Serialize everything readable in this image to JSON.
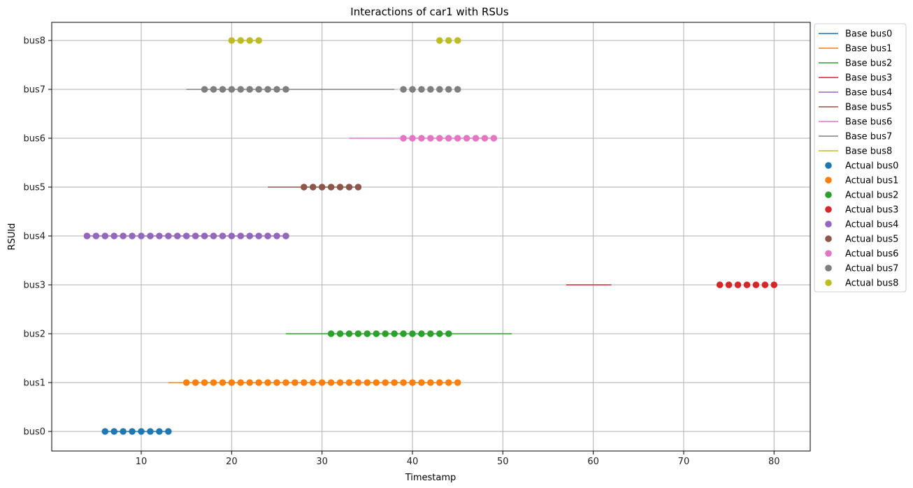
{
  "chart_data": {
    "type": "line+scatter",
    "title": "Interactions of car1 with RSUs",
    "xlabel": "Timestamp",
    "ylabel": "RSUId",
    "xlim": [
      0.1,
      84.0
    ],
    "x_ticks": [
      10,
      20,
      30,
      40,
      50,
      60,
      70,
      80
    ],
    "y_categories": [
      "bus0",
      "bus1",
      "bus2",
      "bus3",
      "bus4",
      "bus5",
      "bus6",
      "bus7",
      "bus8"
    ],
    "grid": true,
    "legend_position": "outside-right",
    "base_series": [
      {
        "name": "Base bus0",
        "rsu": "bus0",
        "color": "#1f77b4",
        "x": [
          6,
          13
        ]
      },
      {
        "name": "Base bus1",
        "rsu": "bus1",
        "color": "#ff7f0e",
        "x": [
          13,
          45
        ]
      },
      {
        "name": "Base bus2",
        "rsu": "bus2",
        "color": "#2ca02c",
        "x": [
          26,
          51
        ]
      },
      {
        "name": "Base bus3",
        "rsu": "bus3",
        "color": "#d62728",
        "x": [
          57,
          62
        ]
      },
      {
        "name": "Base bus4",
        "rsu": "bus4",
        "color": "#9467bd",
        "x": [
          4,
          26
        ]
      },
      {
        "name": "Base bus5",
        "rsu": "bus5",
        "color": "#8c564b",
        "x": [
          24,
          34
        ]
      },
      {
        "name": "Base bus6",
        "rsu": "bus6",
        "color": "#e377c2",
        "x": [
          33,
          49
        ]
      },
      {
        "name": "Base bus7",
        "rsu": "bus7",
        "color": "#7f7f7f",
        "x": [
          15,
          38
        ]
      },
      {
        "name": "Base bus8",
        "rsu": "bus8",
        "color": "#bcbd22",
        "x": [
          20,
          23
        ]
      }
    ],
    "actual_series": [
      {
        "name": "Actual bus0",
        "rsu": "bus0",
        "color": "#1f77b4",
        "x": [
          6,
          7,
          8,
          9,
          10,
          11,
          12,
          13
        ]
      },
      {
        "name": "Actual bus1",
        "rsu": "bus1",
        "color": "#ff7f0e",
        "x": [
          15,
          16,
          17,
          18,
          19,
          20,
          21,
          22,
          23,
          24,
          25,
          26,
          27,
          28,
          29,
          30,
          31,
          32,
          33,
          34,
          35,
          36,
          37,
          38,
          39,
          40,
          41,
          42,
          43,
          44,
          45
        ]
      },
      {
        "name": "Actual bus2",
        "rsu": "bus2",
        "color": "#2ca02c",
        "x": [
          31,
          32,
          33,
          34,
          35,
          36,
          37,
          38,
          39,
          40,
          41,
          42,
          43,
          44
        ]
      },
      {
        "name": "Actual bus3",
        "rsu": "bus3",
        "color": "#d62728",
        "x": [
          74,
          75,
          76,
          77,
          78,
          79,
          80
        ]
      },
      {
        "name": "Actual bus4",
        "rsu": "bus4",
        "color": "#9467bd",
        "x": [
          4,
          5,
          6,
          7,
          8,
          9,
          10,
          11,
          12,
          13,
          14,
          15,
          16,
          17,
          18,
          19,
          20,
          21,
          22,
          23,
          24,
          25,
          26
        ]
      },
      {
        "name": "Actual bus5",
        "rsu": "bus5",
        "color": "#8c564b",
        "x": [
          28,
          29,
          30,
          31,
          32,
          33,
          34
        ]
      },
      {
        "name": "Actual bus6",
        "rsu": "bus6",
        "color": "#e377c2",
        "x": [
          39,
          40,
          41,
          42,
          43,
          44,
          45,
          46,
          47,
          48,
          49
        ]
      },
      {
        "name": "Actual bus7",
        "rsu": "bus7",
        "color": "#7f7f7f",
        "x": [
          17,
          18,
          19,
          20,
          21,
          22,
          23,
          24,
          25,
          26,
          39,
          40,
          41,
          42,
          43,
          44,
          45
        ]
      },
      {
        "name": "Actual bus8",
        "rsu": "bus8",
        "color": "#bcbd22",
        "x": [
          20,
          21,
          22,
          23,
          43,
          44,
          45
        ]
      }
    ]
  }
}
